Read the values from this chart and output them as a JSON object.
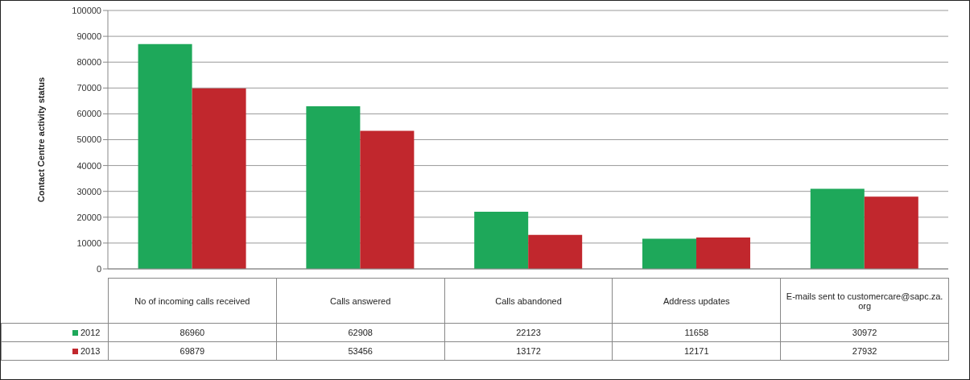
{
  "chart_data": {
    "type": "bar",
    "ylabel": "Contact Centre activity status",
    "categories": [
      "No of incoming calls received",
      "Calls answered",
      "Calls abandoned",
      "Address updates",
      "E-mails sent to customercare@sapc.za.org"
    ],
    "series": [
      {
        "name": "2012",
        "color": "#1ea85a",
        "values": [
          86960,
          62908,
          22123,
          11658,
          30972
        ]
      },
      {
        "name": "2013",
        "color": "#c1272d",
        "values": [
          69879,
          53456,
          13172,
          12171,
          27932
        ]
      }
    ],
    "ylim": [
      0,
      100000
    ],
    "yticks": [
      0,
      10000,
      20000,
      30000,
      40000,
      50000,
      60000,
      70000,
      80000,
      90000,
      100000
    ],
    "grid": "y",
    "data_labels": true,
    "legend": "bottom"
  }
}
